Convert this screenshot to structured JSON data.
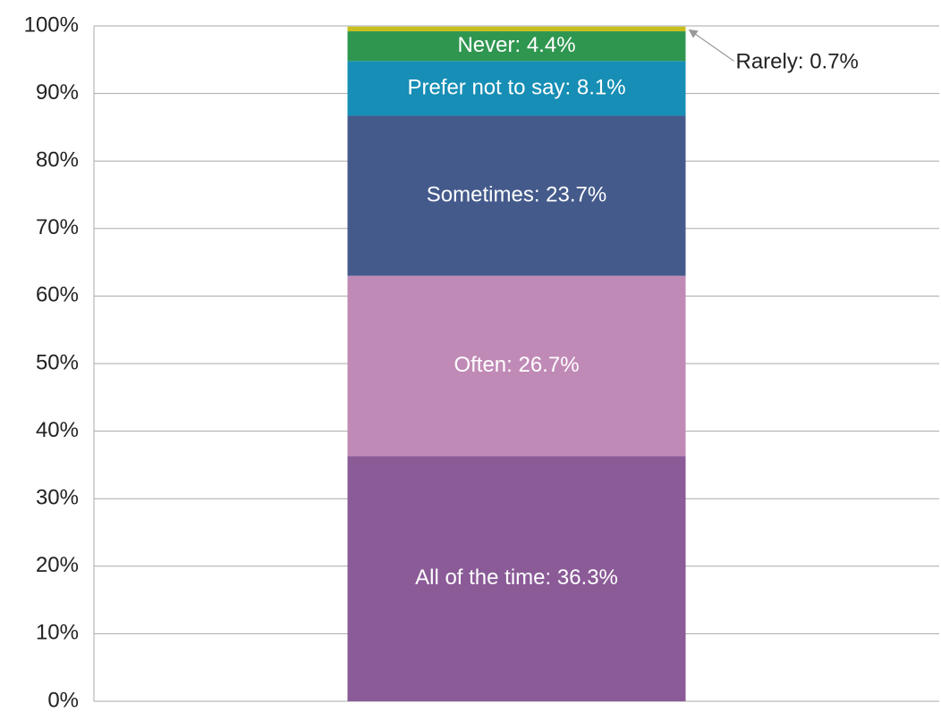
{
  "chart_data": {
    "type": "stacked_bar",
    "categories": [
      null
    ],
    "series": [
      {
        "name": "All of the time",
        "color": "#8a5b97",
        "values": [
          36.3
        ],
        "value_labels": [
          "All of the time: 36.3%"
        ]
      },
      {
        "name": "Often",
        "color": "#c08ab6",
        "values": [
          26.7
        ],
        "value_labels": [
          "Often: 26.7%"
        ]
      },
      {
        "name": "Sometimes",
        "color": "#445a8b",
        "values": [
          23.7
        ],
        "value_labels": [
          "Sometimes: 23.7%"
        ]
      },
      {
        "name": "Prefer not to say",
        "color": "#168eb5",
        "values": [
          8.1
        ],
        "value_labels": [
          "Prefer not to say: 8.1%"
        ]
      },
      {
        "name": "Never",
        "color": "#2f9650",
        "values": [
          4.4
        ],
        "value_labels": [
          "Never: 4.4%"
        ]
      },
      {
        "name": "Rarely",
        "color": "#c8bf1f",
        "values": [
          0.7
        ],
        "value_labels": [
          "Rarely: 0.7%"
        ]
      }
    ],
    "ylim": [
      0,
      100
    ],
    "yticks": [
      {
        "value": 0,
        "label": "0%"
      },
      {
        "value": 10,
        "label": "10%"
      },
      {
        "value": 20,
        "label": "20%"
      },
      {
        "value": 30,
        "label": "30%"
      },
      {
        "value": 40,
        "label": "40%"
      },
      {
        "value": 50,
        "label": "50%"
      },
      {
        "value": 60,
        "label": "60%"
      },
      {
        "value": 70,
        "label": "70%"
      },
      {
        "value": 80,
        "label": "80%"
      },
      {
        "value": 90,
        "label": "90%"
      },
      {
        "value": 100,
        "label": "100%"
      }
    ],
    "grid": true
  }
}
